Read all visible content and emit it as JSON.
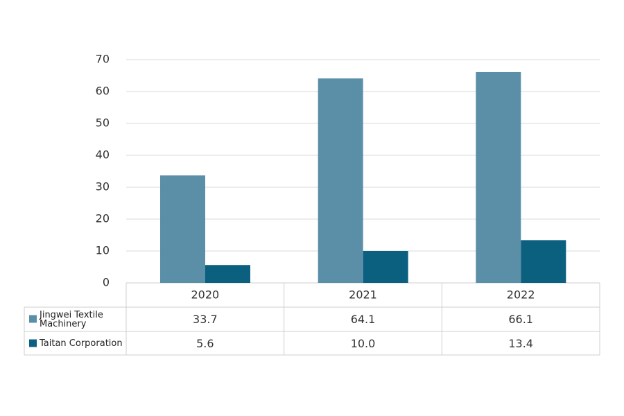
{
  "chart_data": {
    "type": "bar",
    "categories": [
      "2020",
      "2021",
      "2022"
    ],
    "series": [
      {
        "name": "Jingwei Textile Machinery",
        "color": "#5b8fa8",
        "values": [
          33.7,
          64.1,
          66.1
        ]
      },
      {
        "name": "Taitan Corporation",
        "color": "#0b5f7f",
        "values": [
          5.6,
          10,
          13.4
        ],
        "value_labels": [
          "5.6",
          "10.0",
          "13.4"
        ]
      }
    ],
    "ylim": [
      0,
      70
    ],
    "yticks": [
      0,
      10,
      20,
      30,
      40,
      50,
      60,
      70
    ],
    "grid": true
  }
}
